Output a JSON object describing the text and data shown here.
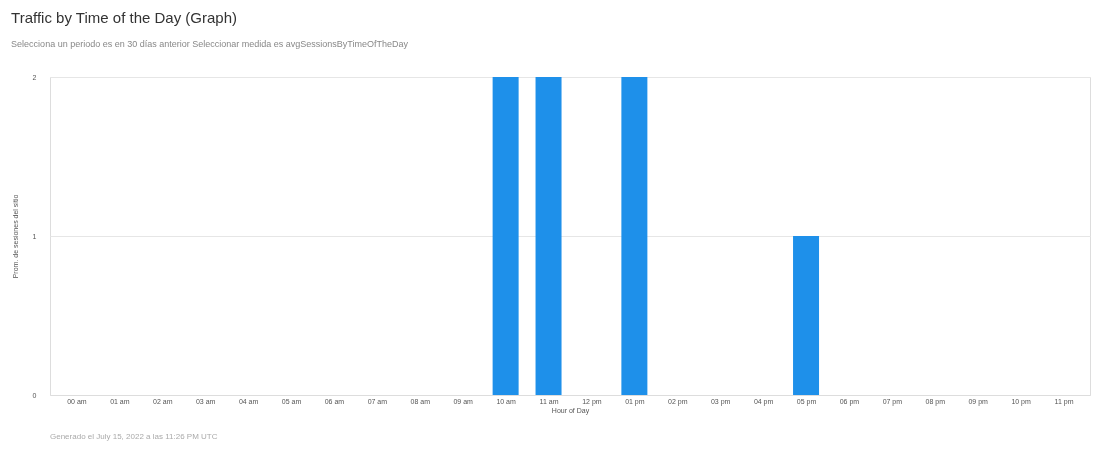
{
  "chart_data": {
    "type": "bar",
    "title": "Traffic by Time of the Day (Graph)",
    "subtitle": "Selecciona un periodo es en 30 días anterior    Seleccionar medida es avgSessionsByTimeOfTheDay",
    "xlabel": "Hour of Day",
    "ylabel": "Prom. de sesiones del sitio",
    "categories": [
      "00 am",
      "01 am",
      "02 am",
      "03 am",
      "04 am",
      "05 am",
      "06 am",
      "07 am",
      "08 am",
      "09 am",
      "10 am",
      "11 am",
      "12 pm",
      "01 pm",
      "02 pm",
      "03 pm",
      "04 pm",
      "05 pm",
      "06 pm",
      "07 pm",
      "08 pm",
      "09 pm",
      "10 pm",
      "11 pm"
    ],
    "values": [
      0,
      0,
      0,
      0,
      0,
      0,
      0,
      0,
      0,
      0,
      2,
      2,
      0,
      2,
      0,
      0,
      0,
      1,
      0,
      0,
      0,
      0,
      0,
      0
    ],
    "color": "#1e90ea",
    "ylim": [
      0,
      2
    ],
    "yticks": [
      0,
      1,
      2
    ],
    "grid": "y",
    "annotations": [
      "Generado el July 15, 2022 a las 11:26 PM UTC"
    ]
  }
}
